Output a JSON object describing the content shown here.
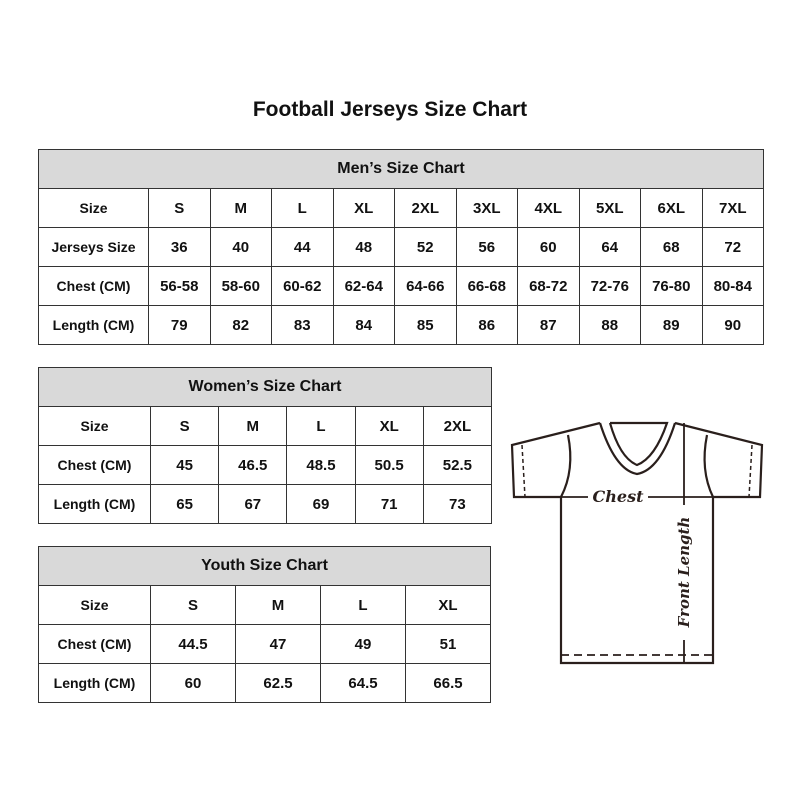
{
  "title": "Football Jerseys Size Chart",
  "men": {
    "title": "Men’s Size Chart",
    "rows": [
      [
        "Size",
        "S",
        "M",
        "L",
        "XL",
        "2XL",
        "3XL",
        "4XL",
        "5XL",
        "6XL",
        "7XL"
      ],
      [
        "Jerseys Size",
        "36",
        "40",
        "44",
        "48",
        "52",
        "56",
        "60",
        "64",
        "68",
        "72"
      ],
      [
        "Chest (CM)",
        "56-58",
        "58-60",
        "60-62",
        "62-64",
        "64-66",
        "66-68",
        "68-72",
        "72-76",
        "76-80",
        "80-84"
      ],
      [
        "Length (CM)",
        "79",
        "82",
        "83",
        "84",
        "85",
        "86",
        "87",
        "88",
        "89",
        "90"
      ]
    ]
  },
  "women": {
    "title": "Women’s Size Chart",
    "rows": [
      [
        "Size",
        "S",
        "M",
        "L",
        "XL",
        "2XL"
      ],
      [
        "Chest (CM)",
        "45",
        "46.5",
        "48.5",
        "50.5",
        "52.5"
      ],
      [
        "Length (CM)",
        "65",
        "67",
        "69",
        "71",
        "73"
      ]
    ]
  },
  "youth": {
    "title": "Youth Size Chart",
    "rows": [
      [
        "Size",
        "S",
        "M",
        "L",
        "XL"
      ],
      [
        "Chest (CM)",
        "44.5",
        "47",
        "49",
        "51"
      ],
      [
        "Length (CM)",
        "60",
        "62.5",
        "64.5",
        "66.5"
      ]
    ]
  },
  "diagram": {
    "chest_label": "Chest",
    "length_label": "Front Length"
  }
}
